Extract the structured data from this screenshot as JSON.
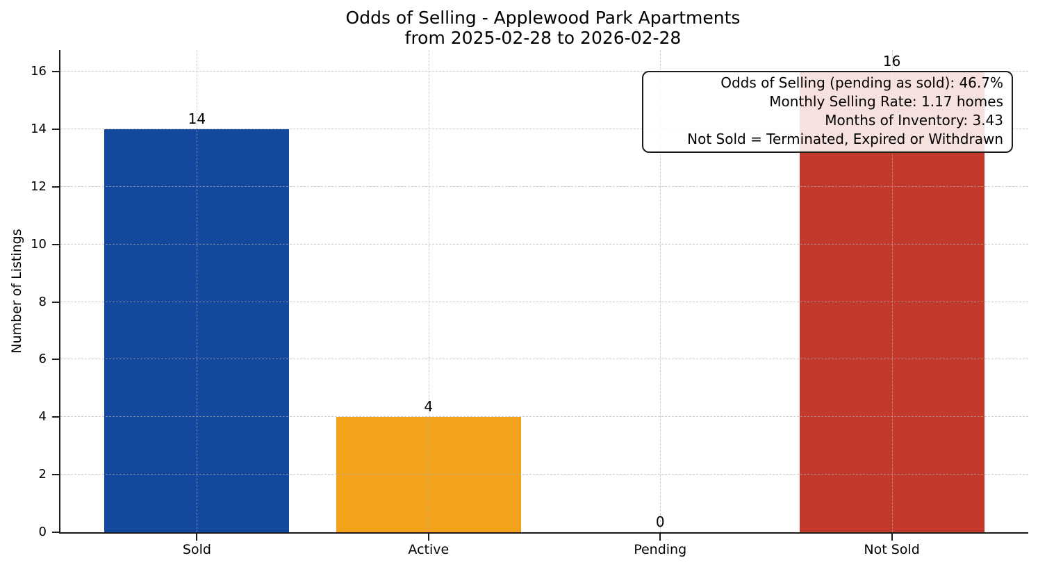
{
  "title": {
    "line1": "Odds of Selling - Applewood Park Apartments",
    "line2": "from 2025-02-28 to 2026-02-28"
  },
  "chart_data": {
    "type": "bar",
    "title": "Odds of Selling - Applewood Park Apartments\nfrom 2025-02-28 to 2026-02-28",
    "categories": [
      "Sold",
      "Active",
      "Pending",
      "Not Sold"
    ],
    "values": [
      14,
      4,
      0,
      16
    ],
    "value_labels": [
      "14",
      "4",
      "0",
      "16"
    ],
    "bar_colors": [
      "#14489E",
      "#F2A31B",
      null,
      "#C33A2C"
    ],
    "xlabel": "",
    "ylabel": "Number of Listings",
    "ylim": [
      0,
      16.75
    ],
    "yticks": [
      0,
      2,
      4,
      6,
      8,
      10,
      12,
      14,
      16
    ],
    "grid": true,
    "legend": null,
    "annotation_lines": [
      "Odds of Selling (pending as sold): 46.7%",
      "Monthly Selling Rate: 1.17 homes",
      "Months of Inventory: 3.43",
      "Not Sold = Terminated, Expired or Withdrawn"
    ]
  },
  "colors": {
    "sold_bar": "#14489E",
    "active_bar": "#F2A31B",
    "not_sold_bar": "#C33A2C",
    "axis": "#1A1A1A",
    "grid_line": "#AFAFAF",
    "annotation_border": "#1C1C1C",
    "background": "#FFFFFF"
  }
}
